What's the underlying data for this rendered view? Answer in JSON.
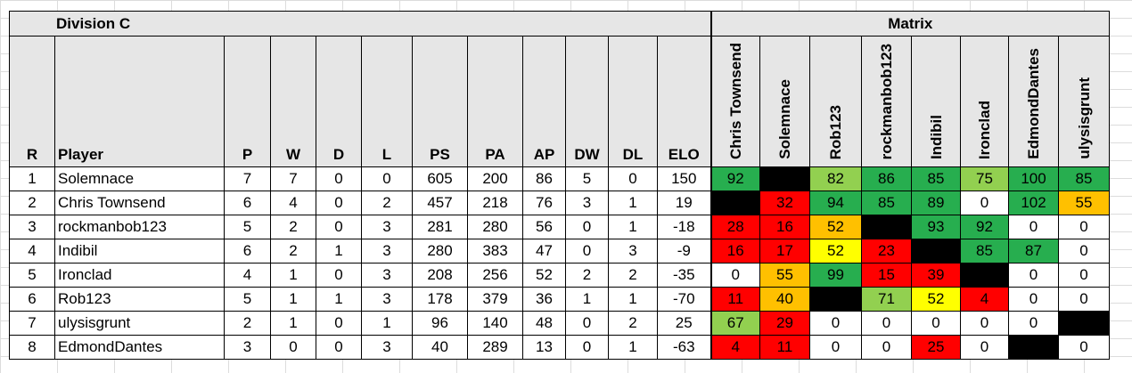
{
  "colors": {
    "green": "#27ae4f",
    "light_green": "#92d050",
    "yellow": "#ffff00",
    "orange": "#ffc000",
    "red": "#ff0000",
    "black": "#000000",
    "white": "#ffffff",
    "header_gray": "#e6e6e6"
  },
  "title": {
    "division": "Division C",
    "matrix": "Matrix"
  },
  "headers": [
    "R",
    "Player",
    "P",
    "W",
    "D",
    "L",
    "PS",
    "PA",
    "AP",
    "DW",
    "DL",
    "ELO"
  ],
  "matrix_columns": [
    "Chris Townsend",
    "Solemnace",
    "Rob123",
    "rockmanbob123",
    "Indibil",
    "Ironclad",
    "EdmondDantes",
    "ulysisgrunt"
  ],
  "rows": [
    {
      "r": "1",
      "player": "Solemnace",
      "p": "7",
      "w": "7",
      "d": "0",
      "l": "0",
      "ps": "605",
      "pa": "200",
      "ap": "86",
      "dw": "5",
      "dl": "0",
      "elo": "150",
      "matrix": [
        {
          "v": "92",
          "c": "green"
        },
        {
          "v": "",
          "c": "black"
        },
        {
          "v": "82",
          "c": "light_green"
        },
        {
          "v": "86",
          "c": "green"
        },
        {
          "v": "85",
          "c": "green"
        },
        {
          "v": "75",
          "c": "light_green"
        },
        {
          "v": "100",
          "c": "green"
        },
        {
          "v": "85",
          "c": "green"
        }
      ]
    },
    {
      "r": "2",
      "player": "Chris Townsend",
      "p": "6",
      "w": "4",
      "d": "0",
      "l": "2",
      "ps": "457",
      "pa": "218",
      "ap": "76",
      "dw": "3",
      "dl": "1",
      "elo": "19",
      "matrix": [
        {
          "v": "",
          "c": "black"
        },
        {
          "v": "32",
          "c": "red"
        },
        {
          "v": "94",
          "c": "green"
        },
        {
          "v": "85",
          "c": "green"
        },
        {
          "v": "89",
          "c": "green"
        },
        {
          "v": "0",
          "c": "white"
        },
        {
          "v": "102",
          "c": "green"
        },
        {
          "v": "55",
          "c": "orange"
        }
      ]
    },
    {
      "r": "3",
      "player": "rockmanbob123",
      "p": "5",
      "w": "2",
      "d": "0",
      "l": "3",
      "ps": "281",
      "pa": "280",
      "ap": "56",
      "dw": "0",
      "dl": "1",
      "elo": "-18",
      "matrix": [
        {
          "v": "28",
          "c": "red"
        },
        {
          "v": "16",
          "c": "red"
        },
        {
          "v": "52",
          "c": "orange"
        },
        {
          "v": "",
          "c": "black"
        },
        {
          "v": "93",
          "c": "green"
        },
        {
          "v": "92",
          "c": "green"
        },
        {
          "v": "0",
          "c": "white"
        },
        {
          "v": "0",
          "c": "white"
        }
      ]
    },
    {
      "r": "4",
      "player": "Indibil",
      "p": "6",
      "w": "2",
      "d": "1",
      "l": "3",
      "ps": "280",
      "pa": "383",
      "ap": "47",
      "dw": "0",
      "dl": "3",
      "elo": "-9",
      "matrix": [
        {
          "v": "16",
          "c": "red"
        },
        {
          "v": "17",
          "c": "red"
        },
        {
          "v": "52",
          "c": "yellow"
        },
        {
          "v": "23",
          "c": "red"
        },
        {
          "v": "",
          "c": "black"
        },
        {
          "v": "85",
          "c": "green"
        },
        {
          "v": "87",
          "c": "green"
        },
        {
          "v": "0",
          "c": "white"
        }
      ]
    },
    {
      "r": "5",
      "player": "Ironclad",
      "p": "4",
      "w": "1",
      "d": "0",
      "l": "3",
      "ps": "208",
      "pa": "256",
      "ap": "52",
      "dw": "2",
      "dl": "2",
      "elo": "-35",
      "matrix": [
        {
          "v": "0",
          "c": "white"
        },
        {
          "v": "55",
          "c": "orange"
        },
        {
          "v": "99",
          "c": "green"
        },
        {
          "v": "15",
          "c": "red"
        },
        {
          "v": "39",
          "c": "red"
        },
        {
          "v": "",
          "c": "black"
        },
        {
          "v": "0",
          "c": "white"
        },
        {
          "v": "0",
          "c": "white"
        }
      ]
    },
    {
      "r": "6",
      "player": "Rob123",
      "p": "5",
      "w": "1",
      "d": "1",
      "l": "3",
      "ps": "178",
      "pa": "379",
      "ap": "36",
      "dw": "1",
      "dl": "1",
      "elo": "-70",
      "matrix": [
        {
          "v": "11",
          "c": "red"
        },
        {
          "v": "40",
          "c": "orange"
        },
        {
          "v": "",
          "c": "black"
        },
        {
          "v": "71",
          "c": "light_green"
        },
        {
          "v": "52",
          "c": "yellow"
        },
        {
          "v": "4",
          "c": "red"
        },
        {
          "v": "0",
          "c": "white"
        },
        {
          "v": "0",
          "c": "white"
        }
      ]
    },
    {
      "r": "7",
      "player": "ulysisgrunt",
      "p": "2",
      "w": "1",
      "d": "0",
      "l": "1",
      "ps": "96",
      "pa": "140",
      "ap": "48",
      "dw": "0",
      "dl": "2",
      "elo": "25",
      "matrix": [
        {
          "v": "67",
          "c": "light_green"
        },
        {
          "v": "29",
          "c": "red"
        },
        {
          "v": "0",
          "c": "white"
        },
        {
          "v": "0",
          "c": "white"
        },
        {
          "v": "0",
          "c": "white"
        },
        {
          "v": "0",
          "c": "white"
        },
        {
          "v": "0",
          "c": "white"
        },
        {
          "v": "",
          "c": "black"
        }
      ]
    },
    {
      "r": "8",
      "player": "EdmondDantes",
      "p": "3",
      "w": "0",
      "d": "0",
      "l": "3",
      "ps": "40",
      "pa": "289",
      "ap": "13",
      "dw": "0",
      "dl": "1",
      "elo": "-63",
      "matrix": [
        {
          "v": "4",
          "c": "red"
        },
        {
          "v": "11",
          "c": "red"
        },
        {
          "v": "0",
          "c": "white"
        },
        {
          "v": "0",
          "c": "white"
        },
        {
          "v": "25",
          "c": "red"
        },
        {
          "v": "0",
          "c": "white"
        },
        {
          "v": "",
          "c": "black"
        },
        {
          "v": "0",
          "c": "white"
        }
      ]
    }
  ]
}
